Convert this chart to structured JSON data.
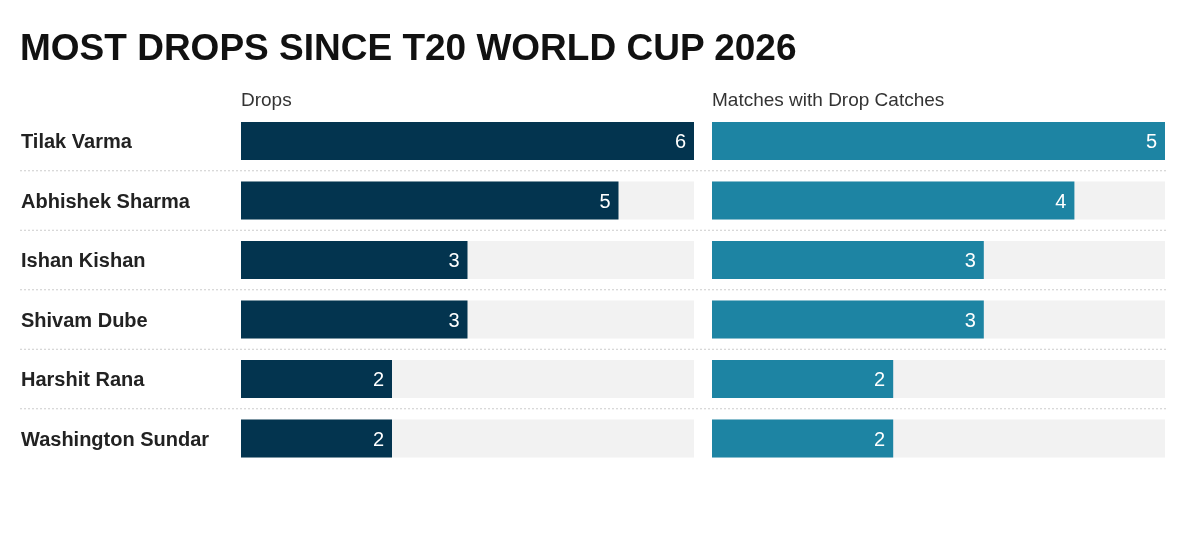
{
  "chart_data": [
    {
      "type": "bar",
      "orientation": "horizontal",
      "title": "MOST DROPS SINCE T20 WORLD CUP 2026",
      "categories": [
        "Tilak Varma",
        "Abhishek Sharma",
        "Ishan Kishan",
        "Shivam Dube",
        "Harshit Rana",
        "Washington Sundar"
      ],
      "series": [
        {
          "name": "Drops",
          "color": "#03344f",
          "values": [
            6,
            5,
            3,
            3,
            2,
            2
          ]
        }
      ],
      "xlim": [
        0,
        6
      ],
      "data_labels": true
    },
    {
      "type": "bar",
      "orientation": "horizontal",
      "categories": [
        null,
        null,
        null,
        null,
        null,
        null
      ],
      "series": [
        {
          "name": "Matches with Drop Catches",
          "color": "#1d84a3",
          "values": [
            5,
            4,
            3,
            3,
            2,
            2
          ]
        }
      ],
      "xlim": [
        0,
        5
      ],
      "data_labels": true
    }
  ]
}
